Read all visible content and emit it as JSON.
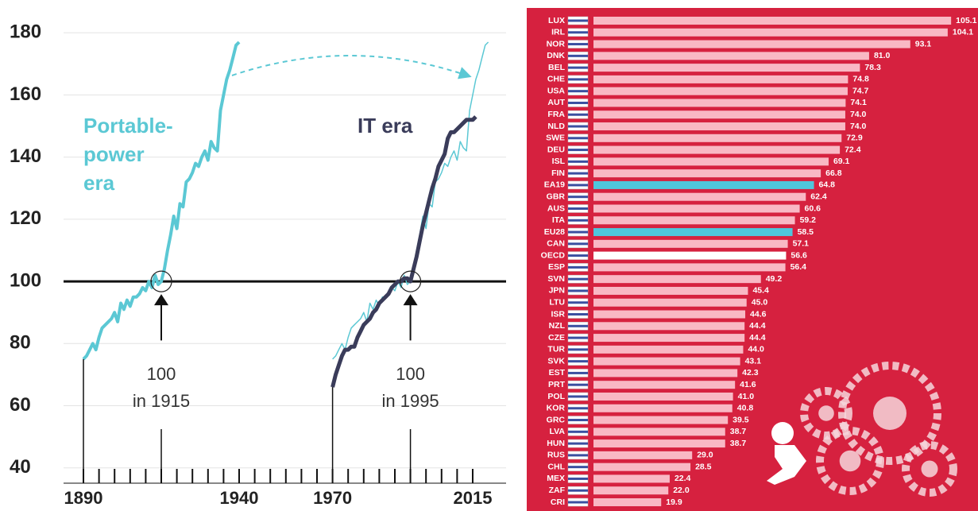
{
  "chart_data": [
    {
      "type": "line",
      "xlim": [
        1884,
        2021
      ],
      "ylim": [
        32,
        188
      ],
      "yticks": [
        40,
        60,
        80,
        100,
        120,
        140,
        160,
        180
      ],
      "xticks": [
        1890,
        1940,
        1970,
        2015
      ],
      "xminor_ticks": [
        1890,
        1895,
        1900,
        1905,
        1910,
        1915,
        1920,
        1925,
        1930,
        1935,
        1940,
        1945,
        1950,
        1955,
        1960,
        1965,
        1970,
        1975,
        1980,
        1985,
        1990,
        1995,
        2000,
        2005,
        2010,
        2015
      ],
      "grid": true,
      "hline": 100,
      "highlight_x": [
        1915,
        1995
      ],
      "annotations": [
        [
          "Portable-",
          "power",
          "era"
        ],
        [
          "IT era"
        ],
        [
          "100",
          "in 1915"
        ],
        [
          "100",
          "in 1995"
        ]
      ],
      "series": [
        {
          "color": "#5bc8d4",
          "width": 4,
          "x": [
            1890,
            1891,
            1892,
            1893,
            1894,
            1895,
            1896,
            1897,
            1898,
            1899,
            1900,
            1901,
            1902,
            1903,
            1904,
            1905,
            1906,
            1907,
            1908,
            1909,
            1910,
            1911,
            1912,
            1913,
            1914,
            1915,
            1916,
            1917,
            1918,
            1919,
            1920,
            1921,
            1922,
            1923,
            1924,
            1925,
            1926,
            1927,
            1928,
            1929,
            1930,
            1931,
            1932,
            1933,
            1934,
            1935,
            1936,
            1937,
            1938,
            1939,
            1940
          ],
          "values": [
            75,
            76,
            78,
            80,
            78,
            82,
            85,
            86,
            87,
            88,
            90,
            87,
            93,
            91,
            94,
            92,
            95,
            95,
            96,
            98,
            97,
            100,
            98,
            102,
            99,
            100,
            104,
            110,
            115,
            121,
            117,
            125,
            124,
            132,
            133,
            135,
            138,
            137,
            140,
            142,
            139,
            145,
            143,
            142,
            155,
            160,
            165,
            168,
            172,
            176,
            177
          ]
        },
        {
          "color": "#5bc8d4",
          "width": 1.5,
          "x": [
            1970,
            1971,
            1972,
            1973,
            1974,
            1975,
            1976,
            1977,
            1978,
            1979,
            1980,
            1981,
            1982,
            1983,
            1984,
            1985,
            1986,
            1987,
            1988,
            1989,
            1990,
            1991,
            1992,
            1993,
            1994,
            1995,
            1996,
            1997,
            1998,
            1999,
            2000,
            2001,
            2002,
            2003,
            2004,
            2005,
            2006,
            2007,
            2008,
            2009,
            2010,
            2011,
            2012,
            2013,
            2014,
            2015,
            2016,
            2017,
            2018,
            2019,
            2020
          ],
          "values": [
            75,
            76,
            78,
            80,
            78,
            82,
            85,
            86,
            87,
            88,
            90,
            87,
            93,
            91,
            94,
            92,
            95,
            95,
            96,
            98,
            97,
            100,
            98,
            102,
            99,
            100,
            104,
            110,
            115,
            121,
            117,
            125,
            124,
            132,
            133,
            135,
            138,
            137,
            140,
            142,
            139,
            145,
            143,
            142,
            155,
            160,
            165,
            168,
            172,
            176,
            177
          ]
        },
        {
          "color": "#3a3c5a",
          "width": 5,
          "x": [
            1970,
            1971,
            1972,
            1973,
            1974,
            1975,
            1976,
            1977,
            1978,
            1979,
            1980,
            1981,
            1982,
            1983,
            1984,
            1985,
            1986,
            1987,
            1988,
            1989,
            1990,
            1991,
            1992,
            1993,
            1994,
            1995,
            1996,
            1997,
            1998,
            1999,
            2000,
            2001,
            2002,
            2003,
            2004,
            2005,
            2006,
            2007,
            2008,
            2009,
            2010,
            2011,
            2012,
            2013,
            2014,
            2015,
            2016
          ],
          "values": [
            66,
            70,
            73,
            76,
            78,
            78,
            79,
            79,
            82,
            84,
            86,
            87,
            88,
            90,
            91,
            93,
            94,
            95,
            96,
            98,
            99,
            100,
            100,
            101,
            101,
            100,
            104,
            108,
            113,
            118,
            122,
            126,
            130,
            133,
            137,
            139,
            141,
            146,
            148,
            148,
            149,
            150,
            151,
            152,
            152,
            152,
            153
          ]
        }
      ]
    },
    {
      "type": "barh",
      "xlim": [
        0,
        113
      ],
      "categories": [
        "LUX",
        "IRL",
        "NOR",
        "DNK",
        "BEL",
        "CHE",
        "USA",
        "AUT",
        "FRA",
        "NLD",
        "SWE",
        "DEU",
        "ISL",
        "FIN",
        "EA19",
        "GBR",
        "AUS",
        "ITA",
        "EU28",
        "CAN",
        "OECD",
        "ESP",
        "SVN",
        "JPN",
        "LTU",
        "ISR",
        "NZL",
        "CZE",
        "TUR",
        "SVK",
        "EST",
        "PRT",
        "POL",
        "KOR",
        "GRC",
        "LVA",
        "HUN",
        "RUS",
        "CHL",
        "MEX",
        "ZAF",
        "CRI"
      ],
      "values": [
        105.1,
        104.1,
        93.1,
        81.0,
        78.3,
        74.8,
        74.7,
        74.1,
        74.0,
        74.0,
        72.9,
        72.4,
        69.1,
        66.8,
        64.8,
        62.4,
        60.6,
        59.2,
        58.5,
        57.1,
        56.6,
        56.4,
        49.2,
        45.4,
        45.0,
        44.6,
        44.4,
        44.4,
        44.0,
        43.1,
        42.3,
        41.6,
        41.0,
        40.8,
        39.5,
        38.7,
        38.7,
        29.0,
        28.5,
        22.4,
        22.0,
        19.9
      ],
      "value_labels": [
        "105.1",
        "104.1",
        "93.1",
        "81.0",
        "78.3",
        "74.8",
        "74.7",
        "74.1",
        "74.0",
        "74.0",
        "72.9",
        "72.4",
        "69.1",
        "66.8",
        "64.8",
        "62.4",
        "60.6",
        "59.2",
        "58.5",
        "57.1",
        "56.6",
        "56.4",
        "49.2",
        "45.4",
        "45.0",
        "44.6",
        "44.4",
        "44.4",
        "44.0",
        "43.1",
        "42.3",
        "41.6",
        "41.0",
        "40.8",
        "39.5",
        "38.7",
        "38.7",
        "29.0",
        "28.5",
        "22.4",
        "22.0",
        "19.9"
      ],
      "colors": [
        "#f9b8c4",
        "#f9b8c4",
        "#f9b8c4",
        "#f9b8c4",
        "#f9b8c4",
        "#f9b8c4",
        "#f9b8c4",
        "#f9b8c4",
        "#f9b8c4",
        "#f9b8c4",
        "#f9b8c4",
        "#f9b8c4",
        "#f9b8c4",
        "#f9b8c4",
        "#4fc6dc",
        "#f9b8c4",
        "#f9b8c4",
        "#f9b8c4",
        "#4fc6dc",
        "#f9b8c4",
        "#ffffff",
        "#f9b8c4",
        "#f9b8c4",
        "#f9b8c4",
        "#f9b8c4",
        "#f9b8c4",
        "#f9b8c4",
        "#f9b8c4",
        "#f9b8c4",
        "#f9b8c4",
        "#f9b8c4",
        "#f9b8c4",
        "#f9b8c4",
        "#f9b8c4",
        "#f9b8c4",
        "#f9b8c4",
        "#f9b8c4",
        "#f9b8c4",
        "#f9b8c4",
        "#f9b8c4",
        "#f9b8c4",
        "#f9b8c4"
      ],
      "background": "#d6213f"
    }
  ]
}
